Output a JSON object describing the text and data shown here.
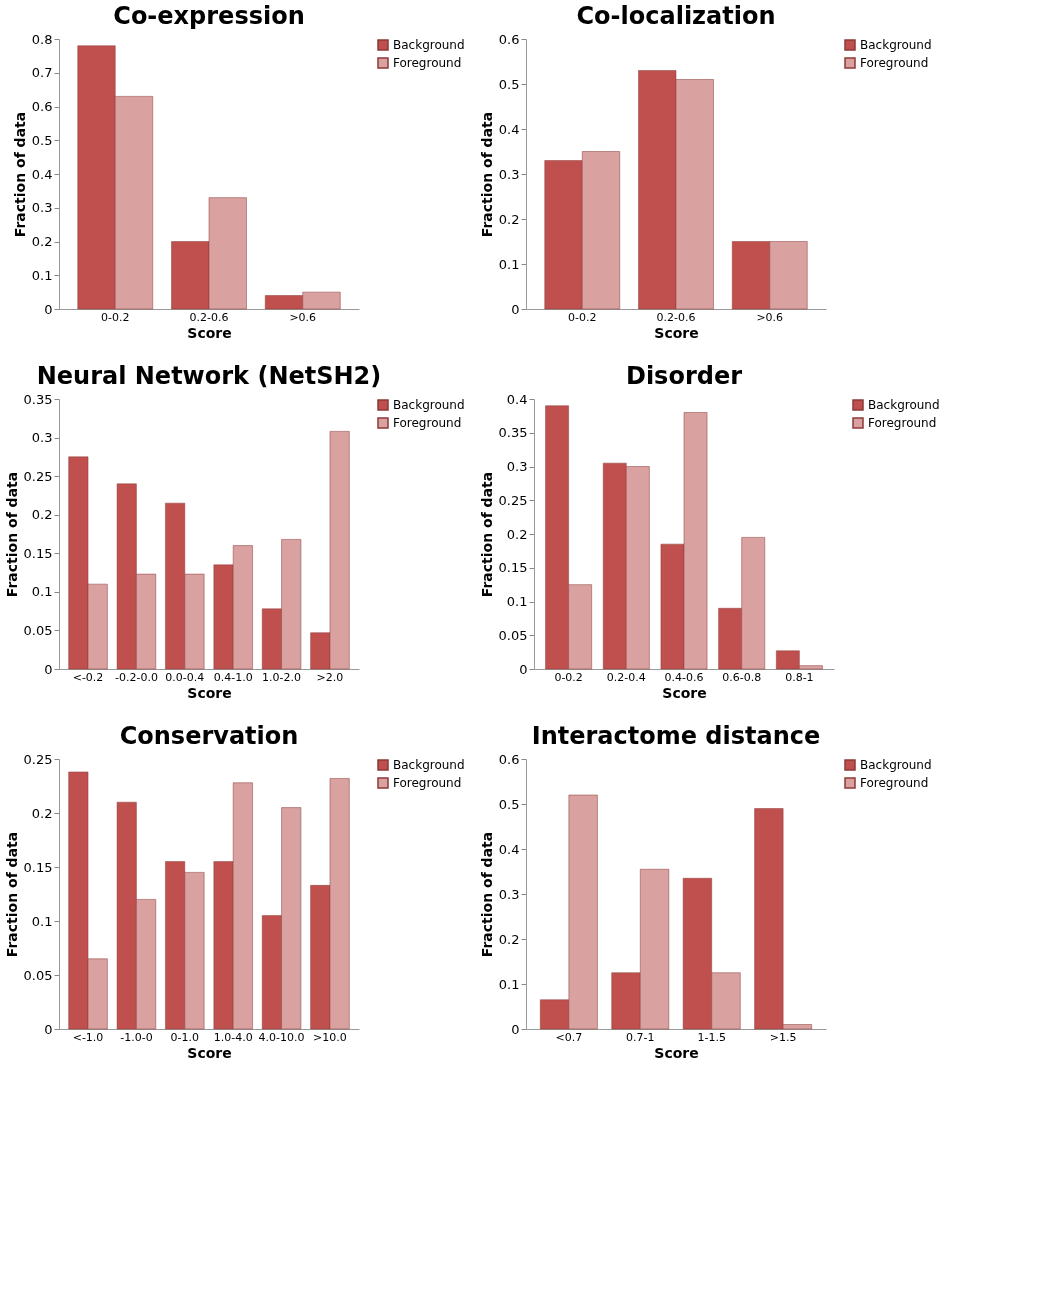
{
  "chart_data": [
    {
      "type": "bar",
      "title": "Co-expression",
      "xlabel": "Score",
      "ylabel": "Fraction of data",
      "categories": [
        "0-0.2",
        "0.2-0.6",
        ">0.6"
      ],
      "ylim": [
        0,
        0.8
      ],
      "yticks": [
        0,
        0.1,
        0.2,
        0.3,
        0.4,
        0.5,
        0.6,
        0.7,
        0.8
      ],
      "legend": "top right",
      "grid": false,
      "series": [
        {
          "name": "Background",
          "color": "#c0504d",
          "values": [
            0.78,
            0.2,
            0.04
          ]
        },
        {
          "name": "Foreground",
          "color": "#d9a19f",
          "values": [
            0.63,
            0.33,
            0.05
          ]
        }
      ]
    },
    {
      "type": "bar",
      "title": "Co-localization",
      "xlabel": "Score",
      "ylabel": "Fraction of data",
      "categories": [
        "0-0.2",
        "0.2-0.6",
        ">0.6"
      ],
      "ylim": [
        0,
        0.6
      ],
      "yticks": [
        0,
        0.1,
        0.2,
        0.3,
        0.4,
        0.5,
        0.6
      ],
      "legend": "top right",
      "grid": false,
      "series": [
        {
          "name": "Background",
          "color": "#c0504d",
          "values": [
            0.33,
            0.53,
            0.15
          ]
        },
        {
          "name": "Foreground",
          "color": "#d9a19f",
          "values": [
            0.35,
            0.51,
            0.15
          ]
        }
      ]
    },
    {
      "type": "bar",
      "title": "Neural Network (NetSH2)",
      "xlabel": "Score",
      "ylabel": "Fraction of data",
      "categories": [
        "<-0.2",
        "-0.2-0.0",
        "0.0-0.4",
        "0.4-1.0",
        "1.0-2.0",
        ">2.0"
      ],
      "ylim": [
        0,
        0.35
      ],
      "yticks": [
        0,
        0.05,
        0.1,
        0.15,
        0.2,
        0.25,
        0.3,
        0.35
      ],
      "legend": "top right",
      "grid": false,
      "series": [
        {
          "name": "Background",
          "color": "#c0504d",
          "values": [
            0.275,
            0.24,
            0.215,
            0.135,
            0.078,
            0.047
          ]
        },
        {
          "name": "Foreground",
          "color": "#d9a19f",
          "values": [
            0.11,
            0.123,
            0.123,
            0.16,
            0.168,
            0.308
          ]
        }
      ]
    },
    {
      "type": "bar",
      "title": "Disorder",
      "xlabel": "Score",
      "ylabel": "Fraction of data",
      "categories": [
        "0-0.2",
        "0.2-0.4",
        "0.4-0.6",
        "0.6-0.8",
        "0.8-1"
      ],
      "ylim": [
        0,
        0.4
      ],
      "yticks": [
        0,
        0.05,
        0.1,
        0.15,
        0.2,
        0.25,
        0.3,
        0.35,
        0.4
      ],
      "legend": "top right",
      "grid": false,
      "series": [
        {
          "name": "Background",
          "color": "#c0504d",
          "values": [
            0.39,
            0.305,
            0.185,
            0.09,
            0.027
          ]
        },
        {
          "name": "Foreground",
          "color": "#d9a19f",
          "values": [
            0.125,
            0.3,
            0.38,
            0.195,
            0.005
          ]
        }
      ]
    },
    {
      "type": "bar",
      "title": "Conservation",
      "xlabel": "Score",
      "ylabel": "Fraction of data",
      "categories": [
        "<-1.0",
        "-1.0-0",
        "0-1.0",
        "1.0-4.0",
        "4.0-10.0",
        ">10.0"
      ],
      "ylim": [
        0,
        0.25
      ],
      "yticks": [
        0,
        0.05,
        0.1,
        0.15,
        0.2,
        0.25
      ],
      "legend": "top right",
      "grid": false,
      "series": [
        {
          "name": "Background",
          "color": "#c0504d",
          "values": [
            0.238,
            0.21,
            0.155,
            0.155,
            0.105,
            0.133
          ]
        },
        {
          "name": "Foreground",
          "color": "#d9a19f",
          "values": [
            0.065,
            0.12,
            0.145,
            0.228,
            0.205,
            0.232
          ]
        }
      ]
    },
    {
      "type": "bar",
      "title": "Interactome distance",
      "xlabel": "Score",
      "ylabel": "Fraction of data",
      "categories": [
        "<0.7",
        "0.7-1",
        "1-1.5",
        ">1.5"
      ],
      "ylim": [
        0,
        0.6
      ],
      "yticks": [
        0,
        0.1,
        0.2,
        0.3,
        0.4,
        0.5,
        0.6
      ],
      "legend": "top right",
      "grid": false,
      "series": [
        {
          "name": "Background",
          "color": "#c0504d",
          "values": [
            0.065,
            0.125,
            0.335,
            0.49
          ]
        },
        {
          "name": "Foreground",
          "color": "#d9a19f",
          "values": [
            0.52,
            0.355,
            0.125,
            0.01
          ]
        }
      ]
    }
  ]
}
